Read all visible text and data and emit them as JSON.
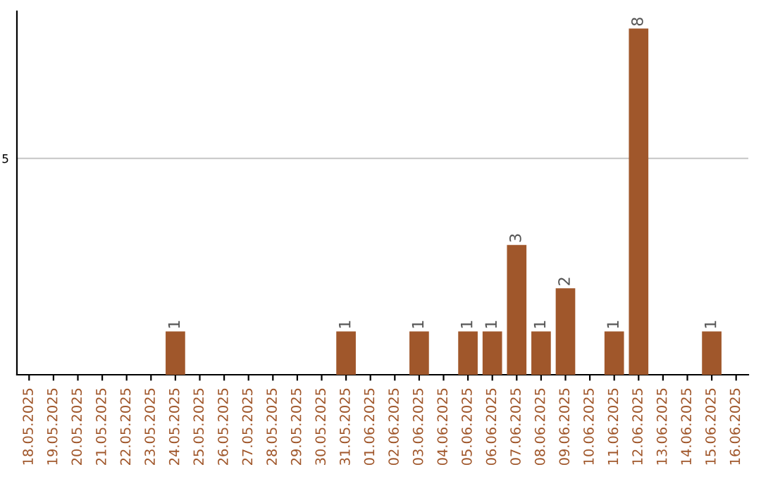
{
  "chart_data": {
    "type": "bar",
    "categories": [
      "18.05.2025",
      "19.05.2025",
      "20.05.2025",
      "21.05.2025",
      "22.05.2025",
      "23.05.2025",
      "24.05.2025",
      "25.05.2025",
      "26.05.2025",
      "27.05.2025",
      "28.05.2025",
      "29.05.2025",
      "30.05.2025",
      "31.05.2025",
      "01.06.2025",
      "02.06.2025",
      "03.06.2025",
      "04.06.2025",
      "05.06.2025",
      "06.06.2025",
      "07.06.2025",
      "08.06.2025",
      "09.06.2025",
      "10.06.2025",
      "11.06.2025",
      "12.06.2025",
      "13.06.2025",
      "14.06.2025",
      "15.06.2025",
      "16.06.2025"
    ],
    "values": [
      0,
      0,
      0,
      0,
      0,
      0,
      1,
      0,
      0,
      0,
      0,
      0,
      0,
      1,
      0,
      0,
      1,
      0,
      1,
      1,
      3,
      1,
      2,
      0,
      1,
      8,
      0,
      0,
      1,
      0
    ],
    "value_labels": [
      null,
      null,
      null,
      null,
      null,
      null,
      "1",
      null,
      null,
      null,
      null,
      null,
      null,
      "1",
      null,
      null,
      "1",
      null,
      "1",
      "1",
      "3",
      "1",
      "2",
      null,
      "1",
      "8",
      null,
      null,
      "1",
      null
    ],
    "color": "#a0572b",
    "ylim": [
      0,
      8.4
    ],
    "yticks": [
      {
        "value": 0,
        "label": null
      },
      5
    ],
    "grid": "y"
  }
}
